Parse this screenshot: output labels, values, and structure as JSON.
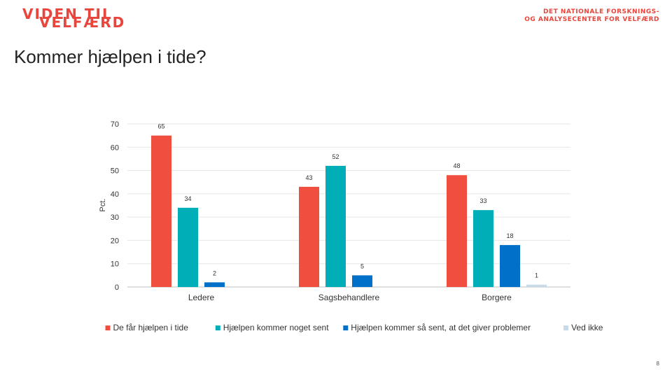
{
  "header": {
    "logo_left_line1": "VIDEN TIL",
    "logo_left_line2": "VELFÆRD",
    "logo_right_line1": "DET NATIONALE FORSKNINGS-",
    "logo_right_line2": "OG ANALYSECENTER FOR VELFÆRD"
  },
  "slide": {
    "title": "Kommer hjælpen i tide?",
    "page_number": "8"
  },
  "chart_data": {
    "type": "bar",
    "title": "",
    "xlabel": "",
    "ylabel": "Pct.",
    "ylim": [
      0,
      70
    ],
    "yticks": [
      0,
      10,
      20,
      30,
      40,
      50,
      60,
      70
    ],
    "grid": true,
    "legend_position": "bottom",
    "categories": [
      "Ledere",
      "Sagsbehandlere",
      "Borgere"
    ],
    "series": [
      {
        "name": "De får hjælpen i tide",
        "values": [
          65,
          43,
          48
        ],
        "color": "#f04e3e"
      },
      {
        "name": "Hjælpen kommer noget sent",
        "values": [
          34,
          52,
          33
        ],
        "color": "#00aeb8"
      },
      {
        "name": "Hjælpen kommer så sent, at det giver problemer",
        "values": [
          2,
          5,
          18
        ],
        "color": "#0070c8"
      },
      {
        "name": "Ved ikke",
        "values": [
          null,
          null,
          1
        ],
        "color": "#c6daea"
      }
    ]
  }
}
